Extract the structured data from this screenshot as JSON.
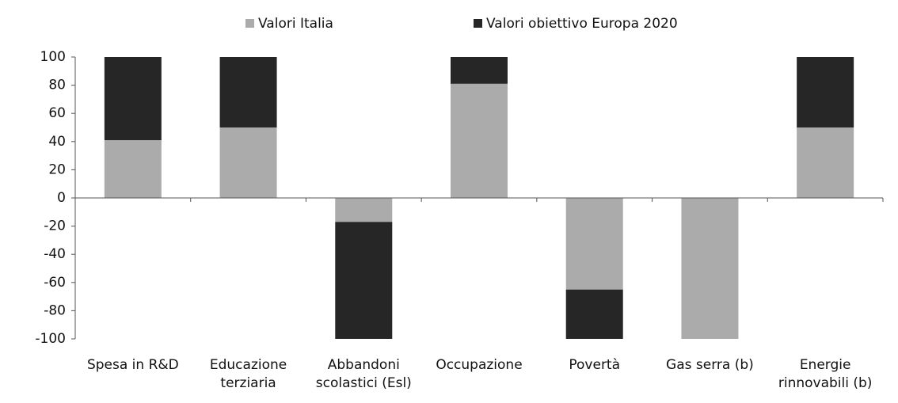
{
  "chart_data": {
    "type": "stacked-bar",
    "categories": [
      "Spesa in R&D",
      "Educazione terziaria",
      "Abbandoni scolastici (Esl)",
      "Occupazione",
      "Povertà",
      "Gas serra  (b)",
      "Energie rinnovabili (b)"
    ],
    "series": [
      {
        "name": "Valori Italia",
        "color": "#ababab",
        "values": [
          41,
          50,
          -17,
          81,
          -65,
          -100,
          50
        ]
      },
      {
        "name": "Valori obiettivo Europa 2020",
        "color": "#262626",
        "values": [
          59,
          50,
          -83,
          19,
          -35,
          0,
          50
        ]
      }
    ],
    "ylim": [
      -100,
      100
    ],
    "yticks": [
      -100,
      -80,
      -60,
      -40,
      -20,
      0,
      20,
      40,
      60,
      80,
      100
    ],
    "legend": "top"
  }
}
